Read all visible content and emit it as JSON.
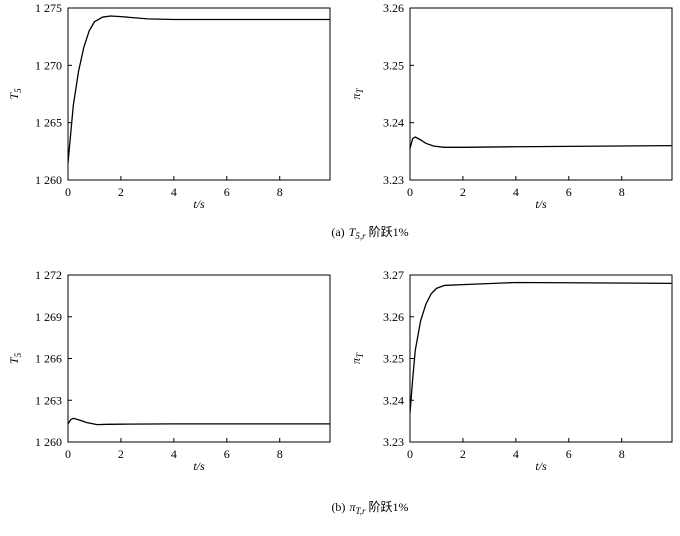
{
  "chart_data": [
    {
      "type": "line",
      "xlabel": "t/s",
      "ylabel": {
        "symbol": "T",
        "subscript": "5"
      },
      "x": [
        0,
        0.1,
        0.2,
        0.4,
        0.6,
        0.8,
        1.0,
        1.3,
        1.6,
        2,
        3,
        4,
        6,
        9.9
      ],
      "series": [
        {
          "color": "#000000",
          "values": [
            1261.5,
            1264,
            1266.5,
            1269.5,
            1271.6,
            1273,
            1273.8,
            1274.2,
            1274.3,
            1274.25,
            1274.05,
            1274.0,
            1274.0,
            1274.0
          ]
        }
      ],
      "xlim": [
        0,
        9.9
      ],
      "xticks": [
        0,
        2,
        4,
        6,
        8
      ],
      "ylim": [
        1260,
        1275
      ],
      "yticks": [
        {
          "value": 1260,
          "label": "1 260"
        },
        {
          "value": 1265,
          "label": "1 265"
        },
        {
          "value": 1270,
          "label": "1 270"
        },
        {
          "value": 1275,
          "label": "1 275"
        }
      ]
    },
    {
      "type": "line",
      "xlabel": "t/s",
      "ylabel": {
        "symbol": "π",
        "subscript": "T"
      },
      "x": [
        0,
        0.1,
        0.2,
        0.4,
        0.6,
        0.9,
        1.3,
        2,
        4,
        9.9
      ],
      "series": [
        {
          "color": "#000000",
          "values": [
            3.2355,
            3.2372,
            3.2375,
            3.237,
            3.2364,
            3.2359,
            3.2357,
            3.2357,
            3.2358,
            3.236
          ]
        }
      ],
      "xlim": [
        0,
        9.9
      ],
      "xticks": [
        0,
        2,
        4,
        6,
        8
      ],
      "ylim": [
        3.23,
        3.26
      ],
      "yticks": [
        {
          "value": 3.23,
          "label": "3.23"
        },
        {
          "value": 3.24,
          "label": "3.24"
        },
        {
          "value": 3.25,
          "label": "3.25"
        },
        {
          "value": 3.26,
          "label": "3.26"
        }
      ]
    },
    {
      "type": "line",
      "xlabel": "t/s",
      "ylabel": {
        "symbol": "T",
        "subscript": "5"
      },
      "x": [
        0,
        0.1,
        0.2,
        0.4,
        0.7,
        1.1,
        1.5,
        2,
        4,
        9.9
      ],
      "series": [
        {
          "color": "#000000",
          "values": [
            1261.3,
            1261.6,
            1261.7,
            1261.6,
            1261.4,
            1261.25,
            1261.27,
            1261.28,
            1261.3,
            1261.3
          ]
        }
      ],
      "xlim": [
        0,
        9.9
      ],
      "xticks": [
        0,
        2,
        4,
        6,
        8
      ],
      "ylim": [
        1260,
        1272
      ],
      "yticks": [
        {
          "value": 1260,
          "label": "1 260"
        },
        {
          "value": 1263,
          "label": "1 263"
        },
        {
          "value": 1266,
          "label": "1 266"
        },
        {
          "value": 1269,
          "label": "1 269"
        },
        {
          "value": 1272,
          "label": "1 272"
        }
      ]
    },
    {
      "type": "line",
      "xlabel": "t/s",
      "ylabel": {
        "symbol": "π",
        "subscript": "T"
      },
      "x": [
        0,
        0.1,
        0.2,
        0.4,
        0.6,
        0.8,
        1.0,
        1.3,
        2,
        4,
        9.9
      ],
      "series": [
        {
          "color": "#000000",
          "values": [
            3.237,
            3.245,
            3.252,
            3.259,
            3.263,
            3.2655,
            3.2668,
            3.2675,
            3.2677,
            3.2682,
            3.268
          ]
        }
      ],
      "xlim": [
        0,
        9.9
      ],
      "xticks": [
        0,
        2,
        4,
        6,
        8
      ],
      "ylim": [
        3.23,
        3.27
      ],
      "yticks": [
        3.23,
        3.24,
        3.25,
        3.26,
        3.27
      ]
    }
  ],
  "captions": [
    {
      "label": "(a)",
      "symbol": "T",
      "subscript": "5,r",
      "text": "阶跃1%"
    },
    {
      "label": "(b)",
      "symbol": "π",
      "subscript": "T,r",
      "text": "阶跃1%"
    }
  ]
}
